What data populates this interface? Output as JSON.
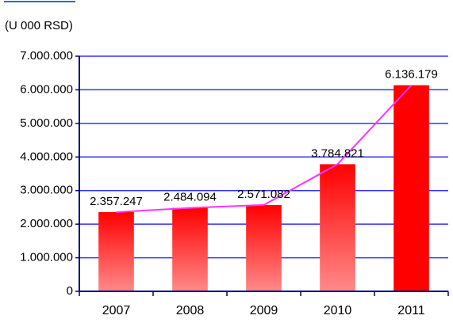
{
  "chart_data": {
    "type": "bar",
    "subtitle": "(U 000 RSD)",
    "categories": [
      "2007",
      "2008",
      "2009",
      "2010",
      "2011"
    ],
    "values": [
      2357247,
      2484094,
      2571082,
      3784821,
      6136179
    ],
    "value_labels": [
      "2.357.247",
      "2.484.094",
      "2.571.082",
      "3.784.821",
      "6.136.179"
    ],
    "colors": [
      [
        "#ff0000",
        "#ff8a8a"
      ],
      [
        "#ff0000",
        "#ff8a8a"
      ],
      [
        "#ff0000",
        "#ff8a8a"
      ],
      [
        "#ff0000",
        "#ff8a8a"
      ],
      [
        "#ff0000",
        "#ff0000"
      ]
    ],
    "connect_line_color": "#ff33ff",
    "ylim": [
      0,
      7000000
    ],
    "yticks": [
      0,
      {
        "value": 1000000,
        "label": "1.000.000"
      },
      {
        "value": 2000000,
        "label": "2.000.000"
      },
      {
        "value": 3000000,
        "label": "3.000.000"
      },
      {
        "value": 4000000,
        "label": "4.000.000"
      },
      {
        "value": 5000000,
        "label": "5.000.000"
      },
      {
        "value": 6000000,
        "label": "6.000.000"
      },
      {
        "value": 7000000,
        "label": "7.000.000"
      }
    ],
    "grid": true,
    "grid_color": "#3333ff"
  }
}
